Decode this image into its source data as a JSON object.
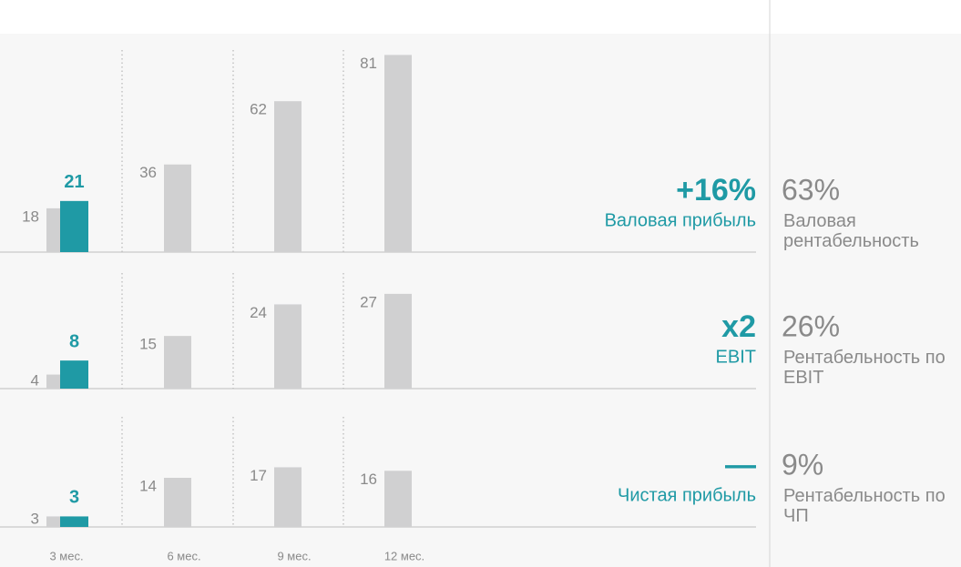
{
  "chart_data": [
    {
      "type": "bar",
      "ylim": [
        0,
        86
      ],
      "series": [
        {
          "color": "#d0d0d1",
          "values": [
            18,
            36,
            62,
            81
          ]
        },
        {
          "color": "#1f9aa5",
          "values": [
            21,
            null,
            null,
            null
          ]
        }
      ],
      "change": "+16%",
      "label": "Валовая прибыль",
      "margin": "63%",
      "margin_label": "Валовая рентабельность"
    },
    {
      "type": "bar",
      "ylim": [
        0,
        35
      ],
      "series": [
        {
          "color": "#d0d0d1",
          "values": [
            4,
            15,
            24,
            27
          ]
        },
        {
          "color": "#1f9aa5",
          "values": [
            8,
            null,
            null,
            null
          ]
        }
      ],
      "change": "x2",
      "label": "EBIT",
      "margin": "26%",
      "margin_label": "Рентабельность по EBIT"
    },
    {
      "type": "bar",
      "ylim": [
        0,
        35
      ],
      "categories": [
        "3 мес.",
        "6 мес.",
        "9 мес.",
        "12 мес."
      ],
      "series": [
        {
          "color": "#d0d0d1",
          "values": [
            3,
            14,
            17,
            16
          ]
        },
        {
          "color": "#1f9aa5",
          "values": [
            3,
            null,
            null,
            null
          ]
        }
      ],
      "change": "—",
      "label": "Чистая прибыль",
      "margin": "9%",
      "margin_label": "Рентабельность по ЧП"
    }
  ]
}
